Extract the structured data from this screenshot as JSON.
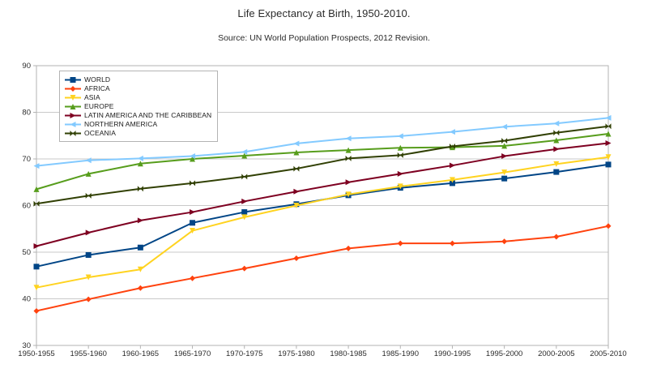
{
  "chart": {
    "title": "Life Expectancy at Birth, 1950-2010.",
    "subtitle": "Source: UN World Population Prospects, 2012 Revision."
  },
  "chart_data": {
    "type": "line",
    "title": "Life Expectancy at Birth, 1950-2010.",
    "subtitle": "Source: UN World Population Prospects, 2012 Revision.",
    "xlabel": "",
    "ylabel": "",
    "ylim": [
      30,
      90
    ],
    "yticks": [
      30,
      40,
      50,
      60,
      70,
      80,
      90
    ],
    "grid": "horizontal",
    "legend_position": "top-left",
    "grid_color": "#c9c9c9",
    "axis_color": "#b3b3b3",
    "label_color": "#2b2b2b",
    "categories": [
      "1950-1955",
      "1955-1960",
      "1960-1965",
      "1965-1970",
      "1970-1975",
      "1975-1980",
      "1980-1985",
      "1985-1990",
      "1990-1995",
      "1995-2000",
      "2000-2005",
      "2005-2010"
    ],
    "series": [
      {
        "name": "WORLD",
        "color": "#004586",
        "marker": "square",
        "values": [
          46.9,
          49.4,
          51.0,
          56.3,
          58.6,
          60.3,
          62.2,
          63.8,
          64.8,
          65.8,
          67.2,
          68.8
        ]
      },
      {
        "name": "AFRICA",
        "color": "#ff420e",
        "marker": "diamond",
        "values": [
          37.4,
          39.9,
          42.3,
          44.4,
          46.5,
          48.7,
          50.8,
          51.9,
          51.9,
          52.3,
          53.3,
          55.6
        ]
      },
      {
        "name": "ASIA",
        "color": "#ffd320",
        "marker": "triangle-down",
        "values": [
          42.4,
          44.6,
          46.3,
          54.6,
          57.5,
          60.0,
          62.4,
          64.1,
          65.5,
          67.1,
          68.9,
          70.4
        ]
      },
      {
        "name": "EUROPE",
        "color": "#579d1c",
        "marker": "triangle-up",
        "values": [
          63.5,
          66.8,
          69.0,
          70.0,
          70.7,
          71.4,
          71.9,
          72.4,
          72.5,
          72.8,
          74.0,
          75.4
        ]
      },
      {
        "name": "LATIN AMERICA AND THE CARIBBEAN",
        "color": "#7e0021",
        "marker": "triangle-right",
        "values": [
          51.3,
          54.2,
          56.8,
          58.6,
          60.9,
          63.0,
          65.0,
          66.8,
          68.6,
          70.6,
          72.1,
          73.4
        ]
      },
      {
        "name": "NORTHERN AMERICA",
        "color": "#83caff",
        "marker": "triangle-left",
        "values": [
          68.5,
          69.7,
          70.1,
          70.6,
          71.5,
          73.3,
          74.4,
          74.9,
          75.8,
          76.9,
          77.6,
          78.8
        ]
      },
      {
        "name": "OCEANIA",
        "color": "#314004",
        "marker": "bowtie",
        "values": [
          60.4,
          62.1,
          63.6,
          64.8,
          66.2,
          67.9,
          70.1,
          70.8,
          72.7,
          73.9,
          75.6,
          77.0
        ]
      }
    ]
  }
}
